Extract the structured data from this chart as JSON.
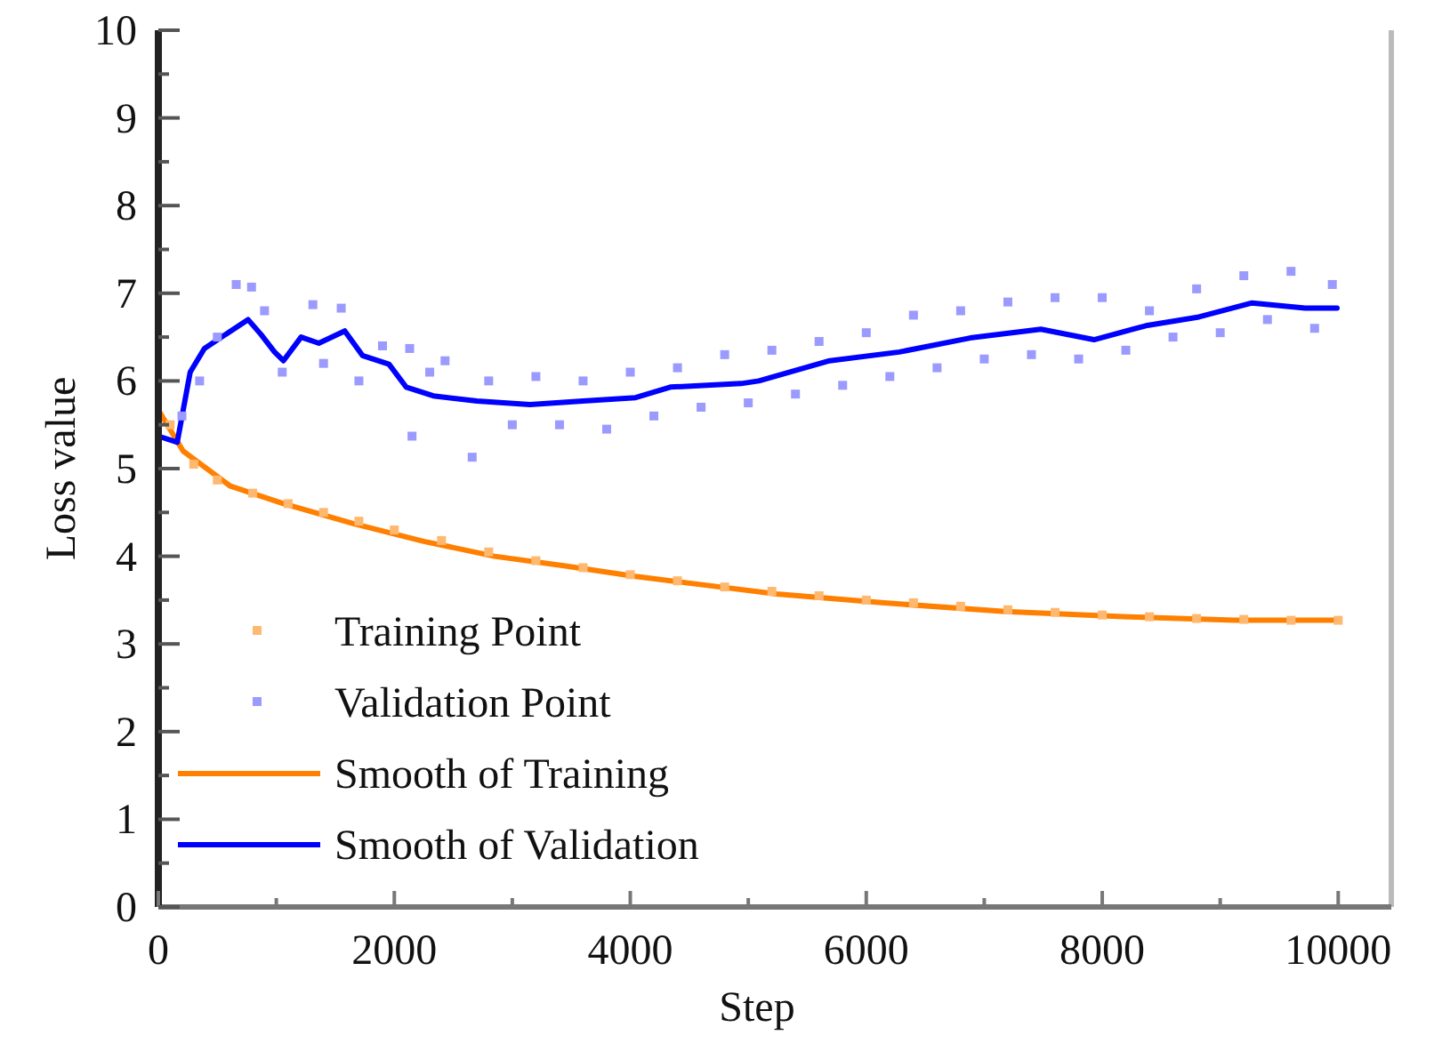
{
  "chart_data": {
    "type": "line",
    "xlabel": "Step",
    "ylabel": "Loss value",
    "xlim": [
      0,
      10450
    ],
    "ylim": [
      0,
      10
    ],
    "xticks": [
      0,
      {
        "value": 1000,
        "label": null
      },
      2000,
      {
        "value": 3000,
        "label": null
      },
      4000,
      {
        "value": 5000,
        "label": null
      },
      6000,
      {
        "value": 7000,
        "label": null
      },
      8000,
      {
        "value": 9000,
        "label": null
      },
      10000
    ],
    "yticks": [
      0,
      {
        "value": 0.5,
        "label": null
      },
      1,
      {
        "value": 1.5,
        "label": null
      },
      2,
      {
        "value": 2.5,
        "label": null
      },
      3,
      {
        "value": 3.5,
        "label": null
      },
      4,
      {
        "value": 4.5,
        "label": null
      },
      5,
      {
        "value": 5.5,
        "label": null
      },
      6,
      {
        "value": 6.5,
        "label": null
      },
      7,
      {
        "value": 7.5,
        "label": null
      },
      8,
      {
        "value": 8.5,
        "label": null
      },
      9,
      {
        "value": 9.5,
        "label": null
      },
      10
    ],
    "grid": false,
    "legend": "bottom left",
    "series": [
      {
        "name": "Training Point",
        "type": "scatter",
        "marker": "square",
        "color": "#ffb870",
        "x": [
          100,
          300,
          500,
          800,
          1100,
          1400,
          1700,
          2000,
          2400,
          2800,
          3200,
          3600,
          4000,
          4400,
          4800,
          5200,
          5600,
          6000,
          6400,
          6800,
          7200,
          7600,
          8000,
          8400,
          8800,
          9200,
          9600,
          10000
        ],
        "values": [
          5.5,
          5.05,
          4.87,
          4.72,
          4.6,
          4.5,
          4.4,
          4.3,
          4.18,
          4.05,
          3.95,
          3.87,
          3.79,
          3.72,
          3.65,
          3.6,
          3.55,
          3.5,
          3.47,
          3.43,
          3.39,
          3.36,
          3.33,
          3.31,
          3.29,
          3.28,
          3.27,
          3.27
        ]
      },
      {
        "name": "Validation Point",
        "type": "scatter",
        "marker": "square",
        "color": "#9a9aff",
        "x": [
          200,
          350,
          500,
          660,
          790,
          900,
          1050,
          1310,
          1400,
          1550,
          1700,
          1900,
          2130,
          2150,
          2300,
          2430,
          2660,
          2800,
          3000,
          3200,
          3400,
          3600,
          3800,
          4000,
          4200,
          4400,
          4600,
          4800,
          5000,
          5200,
          5400,
          5600,
          5800,
          6000,
          6200,
          6400,
          6600,
          6800,
          7000,
          7200,
          7400,
          7600,
          7800,
          8000,
          8200,
          8400,
          8600,
          8800,
          9000,
          9200,
          9400,
          9600,
          9800,
          9950
        ],
        "values": [
          5.6,
          6.0,
          6.5,
          7.1,
          7.07,
          6.8,
          6.1,
          6.87,
          6.2,
          6.83,
          6.0,
          6.4,
          6.37,
          5.37,
          6.1,
          6.23,
          5.13,
          6.0,
          5.5,
          6.05,
          5.5,
          6.0,
          5.45,
          6.1,
          5.6,
          6.15,
          5.7,
          6.3,
          5.75,
          6.35,
          5.85,
          6.45,
          5.95,
          6.55,
          6.05,
          6.75,
          6.15,
          6.8,
          6.25,
          6.9,
          6.3,
          6.95,
          6.25,
          6.95,
          6.35,
          6.8,
          6.5,
          7.05,
          6.55,
          7.2,
          6.7,
          7.25,
          6.6,
          7.1
        ]
      },
      {
        "name": "Smooth of Training",
        "color": "#ff8000",
        "x": [
          0,
          210,
          610,
          1060,
          1660,
          2250,
          2850,
          3450,
          4045,
          4640,
          5240,
          6130,
          7180,
          8220,
          9120,
          9990
        ],
        "values": [
          5.67,
          5.2,
          4.8,
          4.6,
          4.37,
          4.17,
          4.0,
          3.89,
          3.77,
          3.67,
          3.57,
          3.47,
          3.37,
          3.31,
          3.27,
          3.27
        ]
      },
      {
        "name": "Smooth of Validation",
        "color": "#0000ff",
        "x": [
          0,
          160,
          270,
          390,
          760,
          870,
          985,
          1060,
          1210,
          1360,
          1580,
          1730,
          1955,
          2100,
          2330,
          2700,
          3150,
          3600,
          4045,
          4340,
          4940,
          5090,
          5690,
          6280,
          6880,
          7480,
          7930,
          8370,
          8820,
          9270,
          9720,
          9990
        ],
        "values": [
          5.37,
          5.3,
          6.1,
          6.37,
          6.7,
          6.53,
          6.33,
          6.23,
          6.5,
          6.43,
          6.57,
          6.29,
          6.19,
          5.93,
          5.83,
          5.77,
          5.73,
          5.77,
          5.81,
          5.93,
          5.97,
          6.0,
          6.23,
          6.33,
          6.49,
          6.59,
          6.47,
          6.63,
          6.73,
          6.89,
          6.83,
          6.83
        ]
      }
    ]
  }
}
